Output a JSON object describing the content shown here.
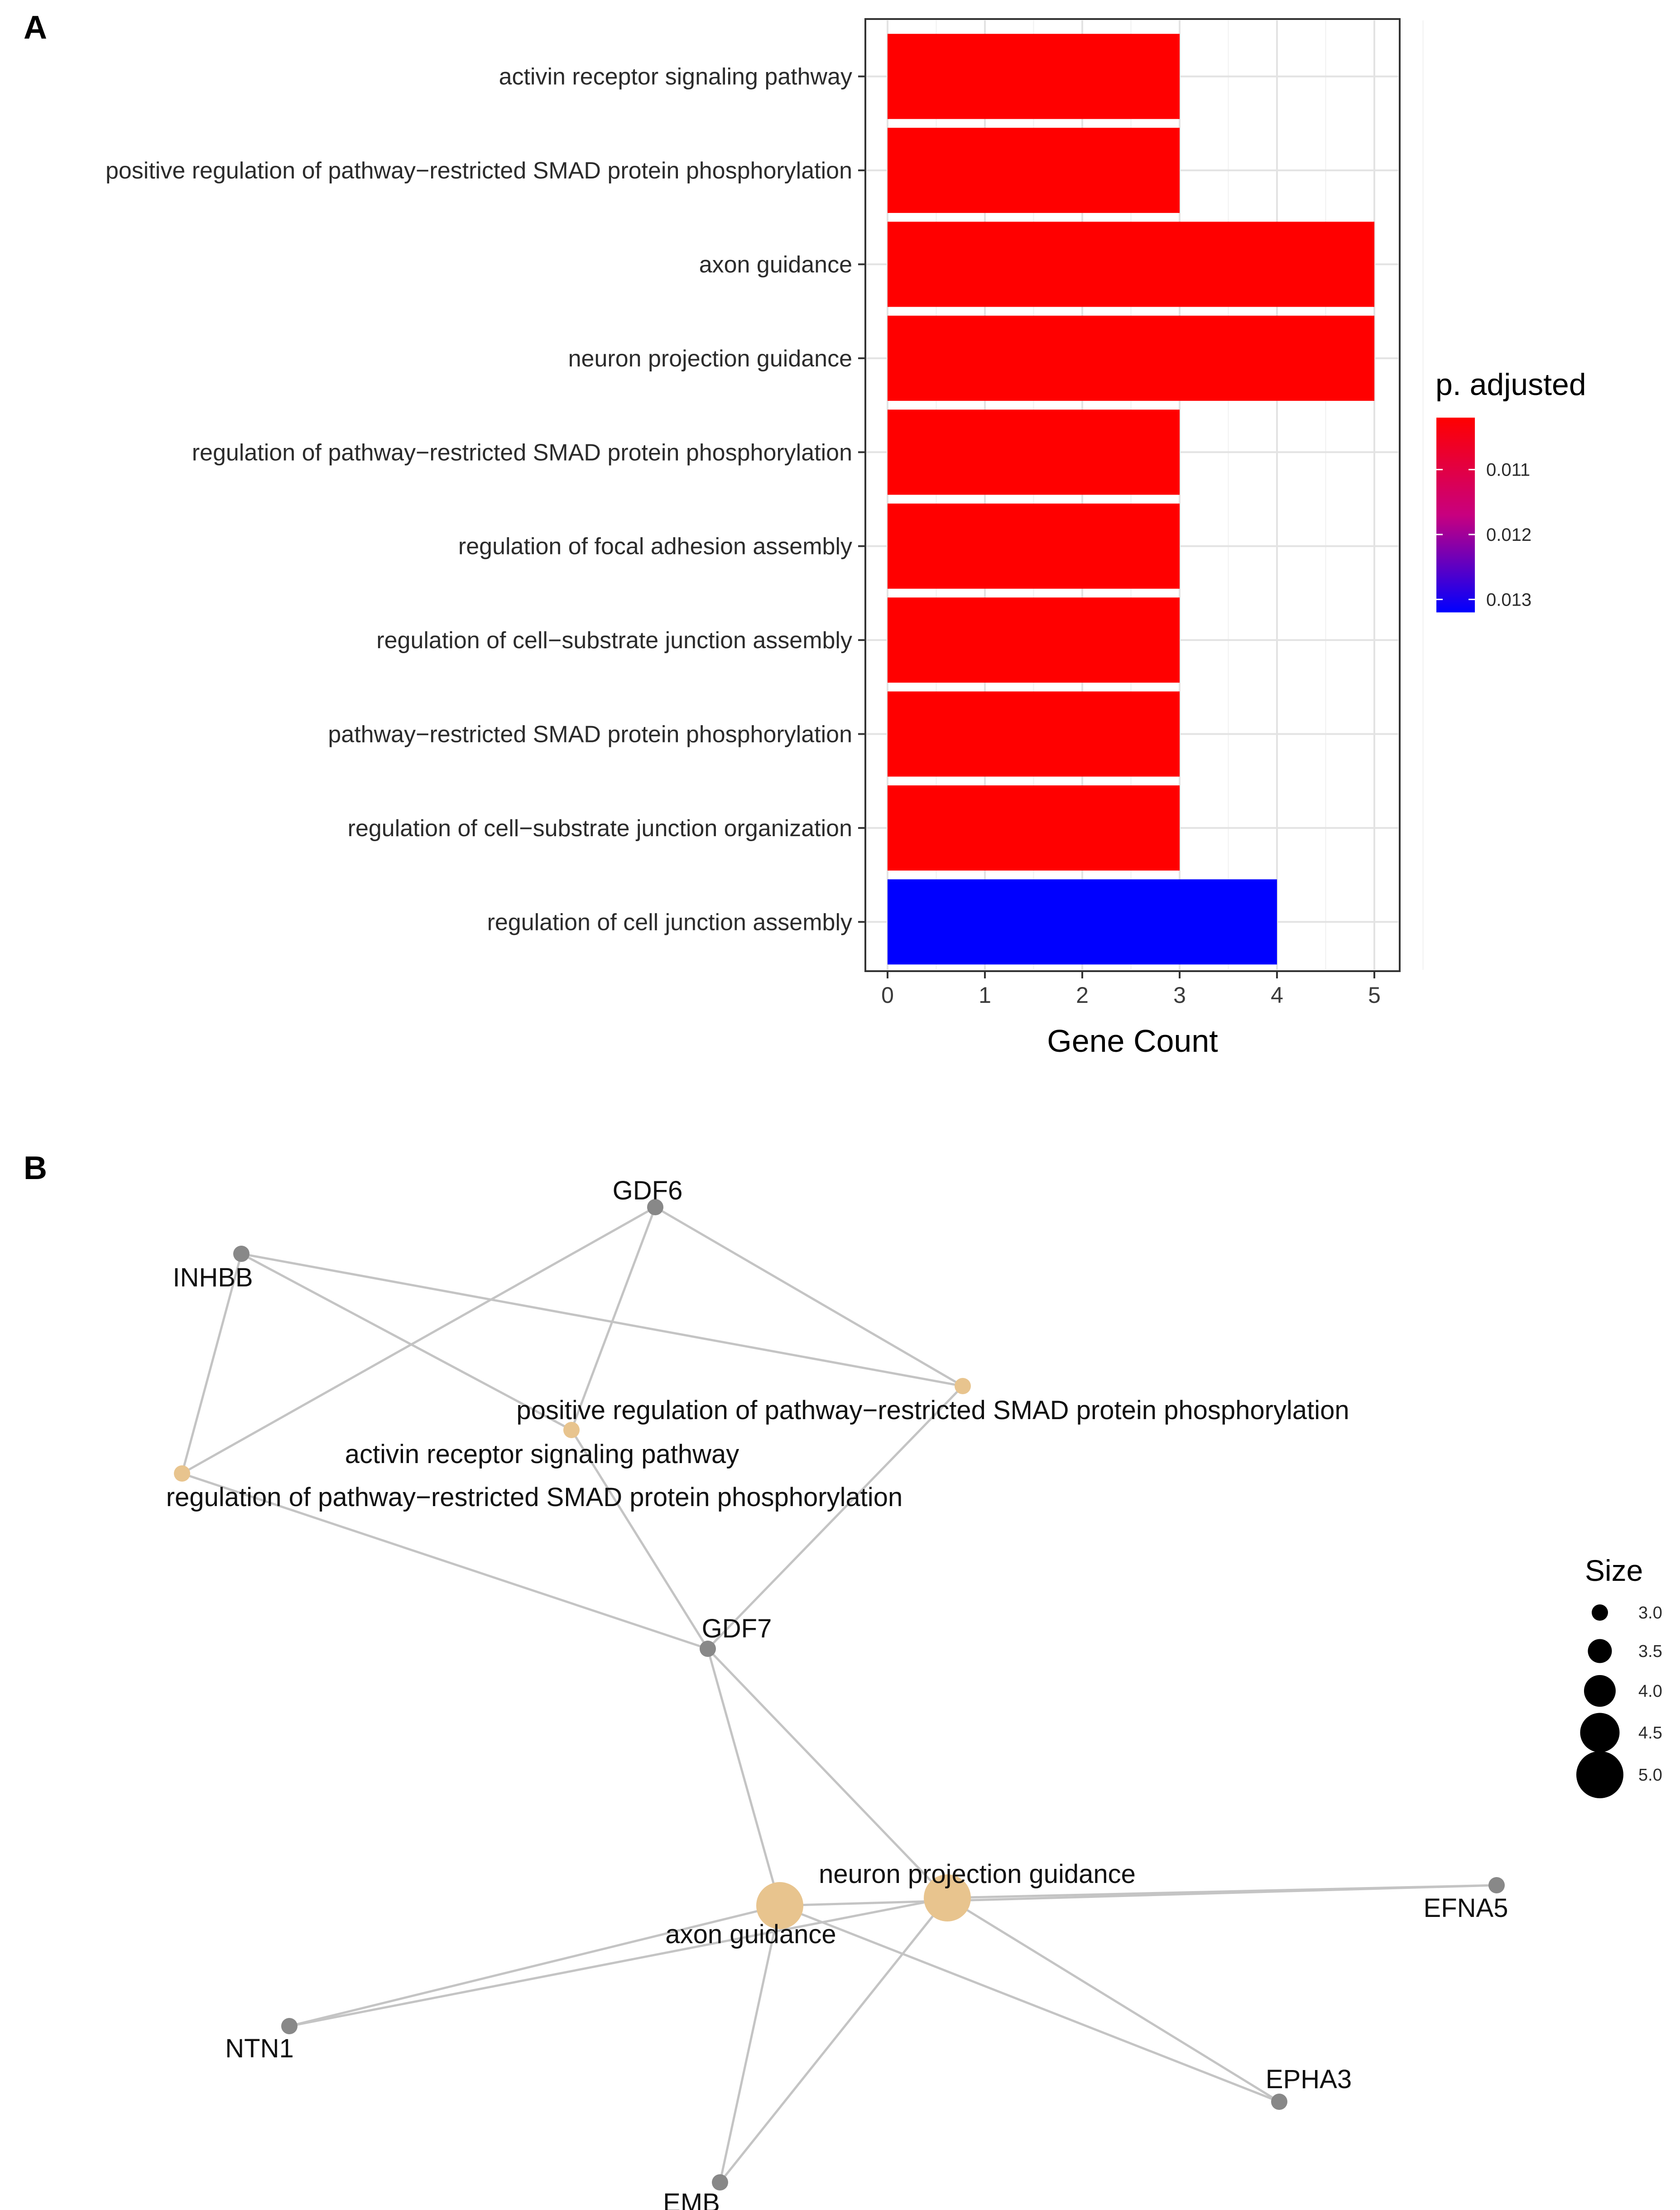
{
  "panels": {
    "a_label": "A",
    "b_label": "B"
  },
  "chart_data": [
    {
      "type": "bar",
      "orientation": "horizontal",
      "title": "",
      "categories": [
        "activin receptor signaling pathway",
        "positive regulation of pathway−restricted SMAD protein phosphorylation",
        "axon guidance",
        "neuron projection guidance",
        "regulation of pathway−restricted SMAD protein phosphorylation",
        "regulation of focal adhesion assembly",
        "regulation of cell−substrate junction assembly",
        "pathway−restricted SMAD protein phosphorylation",
        "regulation of cell−substrate junction organization",
        "regulation of cell junction assembly"
      ],
      "values": [
        3,
        3,
        5,
        5,
        3,
        3,
        3,
        3,
        3,
        4
      ],
      "p_adjusted": [
        0.0102,
        0.0102,
        0.0102,
        0.0102,
        0.0102,
        0.0102,
        0.0102,
        0.0102,
        0.0102,
        0.0132
      ],
      "xlabel": "Gene Count",
      "ylabel": "",
      "xlim": [
        0,
        5
      ],
      "xticks": [
        "0",
        "1",
        "2",
        "3",
        "4",
        "5"
      ],
      "grid": true,
      "legend": {
        "title": "p. adjusted",
        "position": "right",
        "ticks": [
          "0.011",
          "0.012",
          "0.013"
        ],
        "tick_values": [
          0.011,
          0.012,
          0.013
        ],
        "range": [
          0.0102,
          0.0132
        ],
        "colors": {
          "low": "#ff0000",
          "high": "#0000ff"
        }
      }
    },
    {
      "type": "network",
      "title": "",
      "term_color": "#e8c48e",
      "gene_color": "#888888",
      "edge_color": "#c4c4c4",
      "nodes": [
        {
          "id": "GDF6",
          "label": "GDF6",
          "kind": "gene"
        },
        {
          "id": "INHBB",
          "label": "INHBB",
          "kind": "gene"
        },
        {
          "id": "GDF7",
          "label": "GDF7",
          "kind": "gene"
        },
        {
          "id": "EFNA5",
          "label": "EFNA5",
          "kind": "gene"
        },
        {
          "id": "NTN1",
          "label": "NTN1",
          "kind": "gene"
        },
        {
          "id": "EPHA3",
          "label": "EPHA3",
          "kind": "gene"
        },
        {
          "id": "EMB",
          "label": "EMB",
          "kind": "gene"
        },
        {
          "id": "pos_reg",
          "label": "positive regulation of pathway−restricted SMAD protein phosphorylation",
          "kind": "term",
          "size": 3
        },
        {
          "id": "activin",
          "label": "activin receptor signaling pathway",
          "kind": "term",
          "size": 3
        },
        {
          "id": "reg_smad",
          "label": "regulation of pathway−restricted SMAD protein phosphorylation",
          "kind": "term",
          "size": 3
        },
        {
          "id": "neuron_proj",
          "label": "neuron projection guidance",
          "kind": "term",
          "size": 5
        },
        {
          "id": "axon",
          "label": "axon guidance",
          "kind": "term",
          "size": 5
        }
      ],
      "edges": [
        [
          "INHBB",
          "pos_reg"
        ],
        [
          "INHBB",
          "activin"
        ],
        [
          "INHBB",
          "reg_smad"
        ],
        [
          "GDF6",
          "pos_reg"
        ],
        [
          "GDF6",
          "activin"
        ],
        [
          "GDF6",
          "reg_smad"
        ],
        [
          "GDF7",
          "pos_reg"
        ],
        [
          "GDF7",
          "activin"
        ],
        [
          "GDF7",
          "reg_smad"
        ],
        [
          "GDF7",
          "axon"
        ],
        [
          "GDF7",
          "neuron_proj"
        ],
        [
          "EFNA5",
          "axon"
        ],
        [
          "EFNA5",
          "neuron_proj"
        ],
        [
          "NTN1",
          "axon"
        ],
        [
          "NTN1",
          "neuron_proj"
        ],
        [
          "EPHA3",
          "axon"
        ],
        [
          "EPHA3",
          "neuron_proj"
        ],
        [
          "EMB",
          "axon"
        ],
        [
          "EMB",
          "neuron_proj"
        ]
      ],
      "size_legend": {
        "title": "Size",
        "values": [
          3.0,
          3.5,
          4.0,
          4.5,
          5.0
        ],
        "labels": [
          "3.0",
          "3.5",
          "4.0",
          "4.5",
          "5.0"
        ]
      }
    }
  ]
}
